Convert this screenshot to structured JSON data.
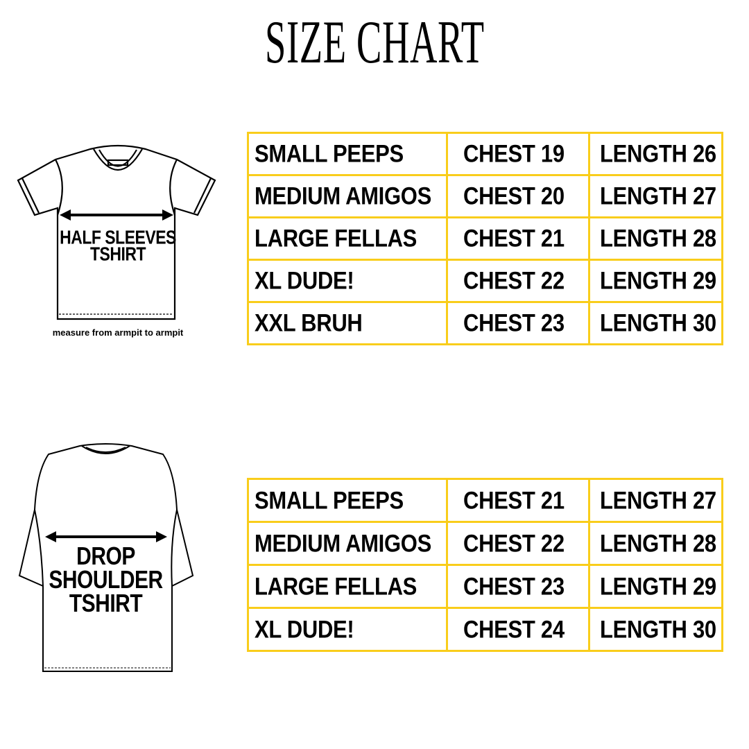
{
  "title": "SIZE CHART",
  "half_sleeves": {
    "label_line1": "HALF SLEEVES",
    "label_line2": "TSHIRT",
    "caption": "measure from armpit to armpit",
    "rows": [
      {
        "size": "SMALL PEEPS",
        "chest": "CHEST 19",
        "length": "LENGTH 26"
      },
      {
        "size": "MEDIUM AMIGOS",
        "chest": "CHEST 20",
        "length": "LENGTH 27"
      },
      {
        "size": "LARGE FELLAS",
        "chest": "CHEST 21",
        "length": "LENGTH 28"
      },
      {
        "size": "XL DUDE!",
        "chest": "CHEST 22",
        "length": "LENGTH 29"
      },
      {
        "size": "XXL BRUH",
        "chest": "CHEST 23",
        "length": "LENGTH 30"
      }
    ]
  },
  "drop_shoulder": {
    "label_line1": "DROP",
    "label_line2": "SHOULDER",
    "label_line3": "TSHIRT",
    "rows": [
      {
        "size": "SMALL PEEPS",
        "chest": "CHEST 21",
        "length": "LENGTH 27"
      },
      {
        "size": "MEDIUM AMIGOS",
        "chest": "CHEST 22",
        "length": "LENGTH 28"
      },
      {
        "size": "LARGE FELLAS",
        "chest": "CHEST 23",
        "length": "LENGTH 29"
      },
      {
        "size": "XL DUDE!",
        "chest": "CHEST 24",
        "length": "LENGTH 30"
      }
    ]
  },
  "colors": {
    "border": "#f9cd1b",
    "text": "#000000"
  }
}
